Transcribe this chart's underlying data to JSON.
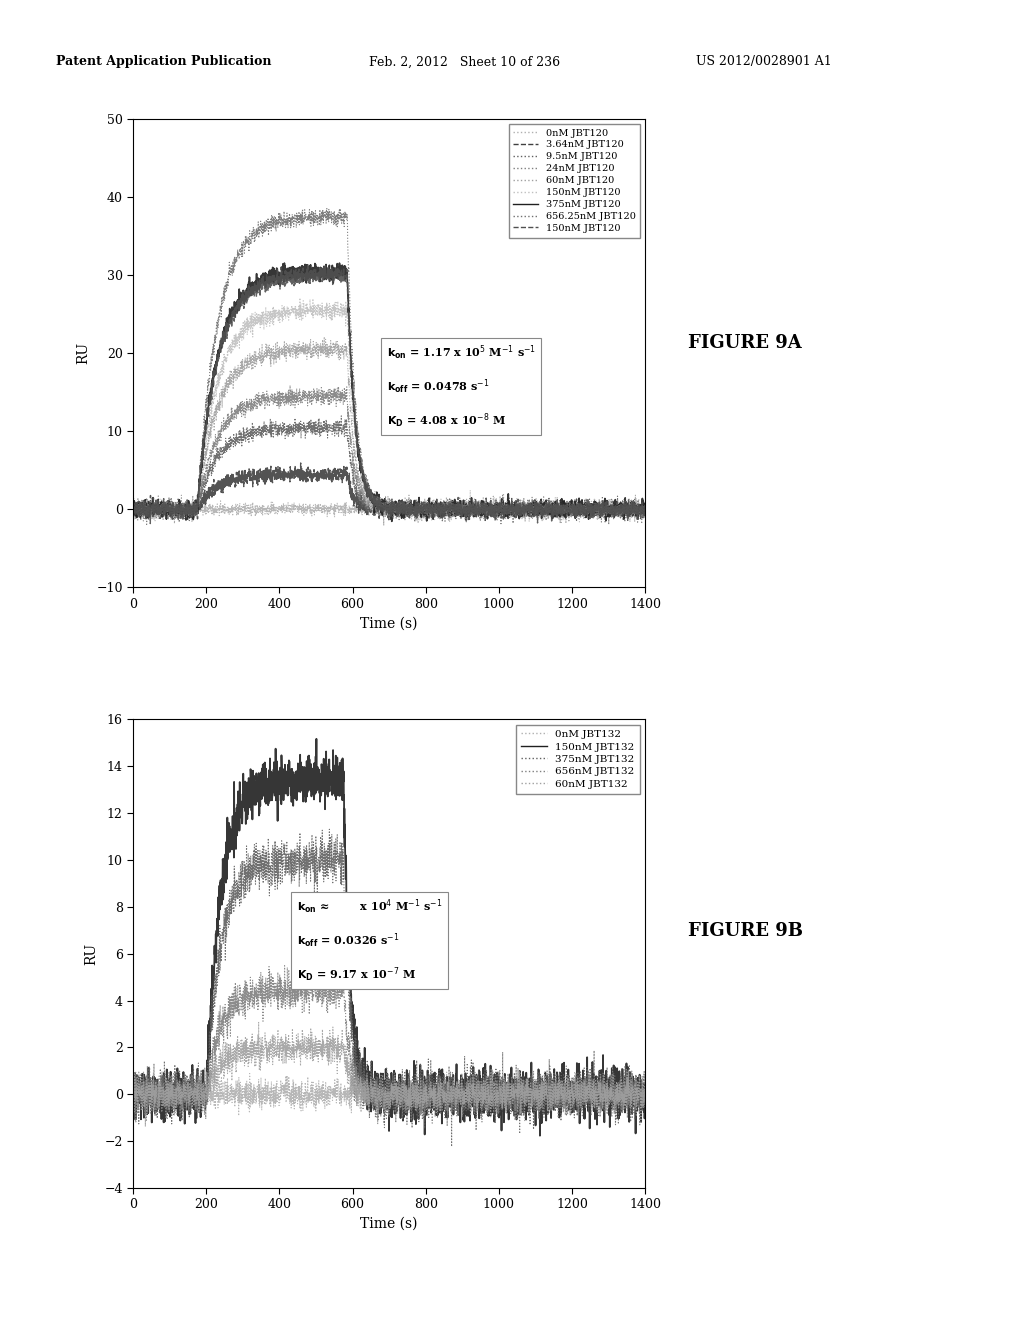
{
  "header_left": "Patent Application Publication",
  "header_mid": "Feb. 2, 2012   Sheet 10 of 236",
  "header_right": "US 2012/0028901 A1",
  "bg_color": "#ffffff",
  "fig9a": {
    "title": "FIGURE 9A",
    "xlabel": "Time (s)",
    "ylabel": "RU",
    "xlim": [
      0,
      1400
    ],
    "ylim": [
      -10,
      50
    ],
    "xticks": [
      0,
      200,
      400,
      600,
      800,
      1000,
      1200,
      1400
    ],
    "yticks": [
      -10,
      0,
      10,
      20,
      30,
      40,
      50
    ],
    "legend_entries": [
      "0nM JBT120",
      "3.64nM JBT120",
      "9.5nM JBT120",
      "24nM JBT120",
      "60nM JBT120",
      "150nM JBT120",
      "375nM JBT120",
      "656.25nM JBT120",
      "150nM JBT120"
    ],
    "kinetics_line1": "k",
    "kinetics_line2": "k",
    "kinetics_line3": "K",
    "plateau_values": [
      0.0,
      4.5,
      10.5,
      14.5,
      20.5,
      25.5,
      30.5,
      37.5,
      30.0
    ],
    "noise_amps": [
      0.35,
      0.45,
      0.5,
      0.55,
      0.55,
      0.55,
      0.5,
      0.5,
      0.5
    ],
    "kon_scales": [
      0.02,
      0.018,
      0.018,
      0.018,
      0.018,
      0.018,
      0.018,
      0.018,
      0.018
    ],
    "koff_scales": [
      0.06,
      0.055,
      0.055,
      0.05,
      0.05,
      0.045,
      0.045,
      0.045,
      0.045
    ],
    "colors": [
      "#b0b0b0",
      "#404040",
      "#606060",
      "#808080",
      "#a0a0a0",
      "#c0c0c0",
      "#202020",
      "#707070",
      "#505050"
    ],
    "linestyles": [
      "dotted",
      "dashed",
      "dotted",
      "dotted",
      "dotted",
      "dotted",
      "solid",
      "dotted",
      "dashed"
    ],
    "linewidths": [
      0.8,
      1.0,
      0.8,
      0.8,
      0.8,
      0.8,
      1.2,
      0.8,
      1.0
    ],
    "association_start": 175,
    "association_end": 585,
    "dissociation_end": 1250
  },
  "fig9b": {
    "title": "FIGURE 9B",
    "xlabel": "Time (s)",
    "ylabel": "RU",
    "xlim": [
      0,
      1400
    ],
    "ylim": [
      -4,
      16
    ],
    "xticks": [
      0,
      200,
      400,
      600,
      800,
      1000,
      1200,
      1400
    ],
    "yticks": [
      -4,
      -2,
      0,
      2,
      4,
      6,
      8,
      10,
      12,
      14,
      16
    ],
    "legend_entries": [
      "0nM JBT132",
      "150nM JBT132",
      "375nM JBT132",
      "656nM JBT132",
      "60nM JBT132"
    ],
    "plateau_values": [
      0.0,
      13.5,
      10.0,
      4.5,
      2.0
    ],
    "noise_amps": [
      0.3,
      0.5,
      0.5,
      0.4,
      0.35
    ],
    "kon_scales": [
      0.025,
      0.025,
      0.025,
      0.025,
      0.025
    ],
    "koff_scales": [
      0.07,
      0.055,
      0.055,
      0.055,
      0.055
    ],
    "colors": [
      "#b0b0b0",
      "#202020",
      "#606060",
      "#808080",
      "#a0a0a0"
    ],
    "linestyles": [
      "dotted",
      "solid",
      "dotted",
      "dotted",
      "dotted"
    ],
    "linewidths": [
      0.8,
      1.3,
      0.8,
      0.8,
      0.8
    ],
    "association_start": 200,
    "association_end": 575,
    "dissociation_end": 1250
  }
}
